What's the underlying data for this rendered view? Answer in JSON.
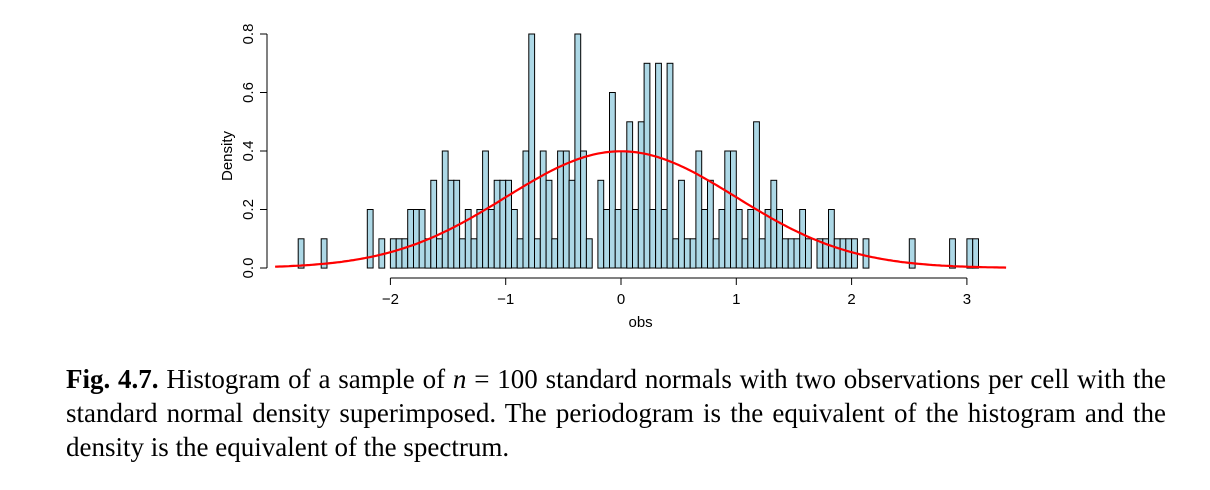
{
  "chart_data": {
    "type": "bar",
    "xlabel": "obs",
    "ylabel": "Density",
    "xlim": [
      -2.9,
      3.35
    ],
    "ylim": [
      0,
      0.8
    ],
    "xticks": [
      -2,
      -1,
      0,
      1,
      2,
      3
    ],
    "xtick_labels": [
      "−2",
      "−1",
      "0",
      "1",
      "2",
      "3"
    ],
    "yticks": [
      0.0,
      0.2,
      0.4,
      0.6,
      0.8
    ],
    "ytick_labels": [
      "0.0",
      "0.2",
      "0.4",
      "0.6",
      "0.8"
    ],
    "bin_edges_from": -2.8,
    "bin_width": 0.05,
    "bins": [
      {
        "x0": -2.8,
        "density": 0.1
      },
      {
        "x0": -2.6,
        "density": 0.1
      },
      {
        "x0": -2.2,
        "density": 0.2
      },
      {
        "x0": -2.1,
        "density": 0.1
      },
      {
        "x0": -2.0,
        "density": 0.1
      },
      {
        "x0": -1.95,
        "density": 0.1
      },
      {
        "x0": -1.9,
        "density": 0.1
      },
      {
        "x0": -1.85,
        "density": 0.2
      },
      {
        "x0": -1.8,
        "density": 0.2
      },
      {
        "x0": -1.75,
        "density": 0.2
      },
      {
        "x0": -1.7,
        "density": 0.1
      },
      {
        "x0": -1.65,
        "density": 0.3
      },
      {
        "x0": -1.6,
        "density": 0.1
      },
      {
        "x0": -1.55,
        "density": 0.4
      },
      {
        "x0": -1.5,
        "density": 0.3
      },
      {
        "x0": -1.45,
        "density": 0.3
      },
      {
        "x0": -1.4,
        "density": 0.1
      },
      {
        "x0": -1.35,
        "density": 0.2
      },
      {
        "x0": -1.3,
        "density": 0.1
      },
      {
        "x0": -1.25,
        "density": 0.2
      },
      {
        "x0": -1.2,
        "density": 0.4
      },
      {
        "x0": -1.15,
        "density": 0.2
      },
      {
        "x0": -1.1,
        "density": 0.3
      },
      {
        "x0": -1.05,
        "density": 0.3
      },
      {
        "x0": -1.0,
        "density": 0.3
      },
      {
        "x0": -0.95,
        "density": 0.2
      },
      {
        "x0": -0.9,
        "density": 0.1
      },
      {
        "x0": -0.85,
        "density": 0.4
      },
      {
        "x0": -0.8,
        "density": 0.8
      },
      {
        "x0": -0.75,
        "density": 0.1
      },
      {
        "x0": -0.7,
        "density": 0.4
      },
      {
        "x0": -0.65,
        "density": 0.3
      },
      {
        "x0": -0.6,
        "density": 0.1
      },
      {
        "x0": -0.55,
        "density": 0.4
      },
      {
        "x0": -0.5,
        "density": 0.4
      },
      {
        "x0": -0.45,
        "density": 0.3
      },
      {
        "x0": -0.4,
        "density": 0.8
      },
      {
        "x0": -0.35,
        "density": 0.4
      },
      {
        "x0": -0.3,
        "density": 0.1
      },
      {
        "x0": -0.2,
        "density": 0.3
      },
      {
        "x0": -0.15,
        "density": 0.2
      },
      {
        "x0": -0.1,
        "density": 0.6
      },
      {
        "x0": -0.05,
        "density": 0.2
      },
      {
        "x0": 0.0,
        "density": 0.4
      },
      {
        "x0": 0.05,
        "density": 0.5
      },
      {
        "x0": 0.1,
        "density": 0.2
      },
      {
        "x0": 0.15,
        "density": 0.5
      },
      {
        "x0": 0.2,
        "density": 0.7
      },
      {
        "x0": 0.25,
        "density": 0.2
      },
      {
        "x0": 0.3,
        "density": 0.7
      },
      {
        "x0": 0.35,
        "density": 0.2
      },
      {
        "x0": 0.4,
        "density": 0.7
      },
      {
        "x0": 0.45,
        "density": 0.1
      },
      {
        "x0": 0.5,
        "density": 0.3
      },
      {
        "x0": 0.55,
        "density": 0.1
      },
      {
        "x0": 0.6,
        "density": 0.1
      },
      {
        "x0": 0.65,
        "density": 0.4
      },
      {
        "x0": 0.7,
        "density": 0.2
      },
      {
        "x0": 0.75,
        "density": 0.3
      },
      {
        "x0": 0.8,
        "density": 0.1
      },
      {
        "x0": 0.85,
        "density": 0.2
      },
      {
        "x0": 0.9,
        "density": 0.4
      },
      {
        "x0": 0.95,
        "density": 0.4
      },
      {
        "x0": 1.0,
        "density": 0.2
      },
      {
        "x0": 1.05,
        "density": 0.1
      },
      {
        "x0": 1.1,
        "density": 0.2
      },
      {
        "x0": 1.15,
        "density": 0.5
      },
      {
        "x0": 1.2,
        "density": 0.1
      },
      {
        "x0": 1.25,
        "density": 0.2
      },
      {
        "x0": 1.3,
        "density": 0.3
      },
      {
        "x0": 1.35,
        "density": 0.2
      },
      {
        "x0": 1.4,
        "density": 0.1
      },
      {
        "x0": 1.45,
        "density": 0.1
      },
      {
        "x0": 1.5,
        "density": 0.1
      },
      {
        "x0": 1.55,
        "density": 0.2
      },
      {
        "x0": 1.6,
        "density": 0.1
      },
      {
        "x0": 1.7,
        "density": 0.1
      },
      {
        "x0": 1.75,
        "density": 0.1
      },
      {
        "x0": 1.8,
        "density": 0.2
      },
      {
        "x0": 1.85,
        "density": 0.1
      },
      {
        "x0": 1.9,
        "density": 0.1
      },
      {
        "x0": 1.95,
        "density": 0.1
      },
      {
        "x0": 2.0,
        "density": 0.1
      },
      {
        "x0": 2.1,
        "density": 0.1
      },
      {
        "x0": 2.5,
        "density": 0.1
      },
      {
        "x0": 2.85,
        "density": 0.1
      },
      {
        "x0": 3.0,
        "density": 0.1
      },
      {
        "x0": 3.05,
        "density": 0.1
      }
    ],
    "curve": {
      "mean": 0,
      "sd": 1,
      "x_from": -3.0,
      "x_to": 3.35
    },
    "colors": {
      "bar_fill": "#add8e6",
      "bar_stroke": "#000000",
      "curve": "#ff0000"
    }
  },
  "caption": {
    "label": "Fig. 4.7.",
    "text_before_n": " Histogram of a sample of ",
    "n_symbol": "n",
    "text_after_n": " = 100 standard normals with two observations per cell with the standard normal density superimposed. The periodogram is the equivalent of the histogram and the density is the equivalent of the spectrum."
  }
}
